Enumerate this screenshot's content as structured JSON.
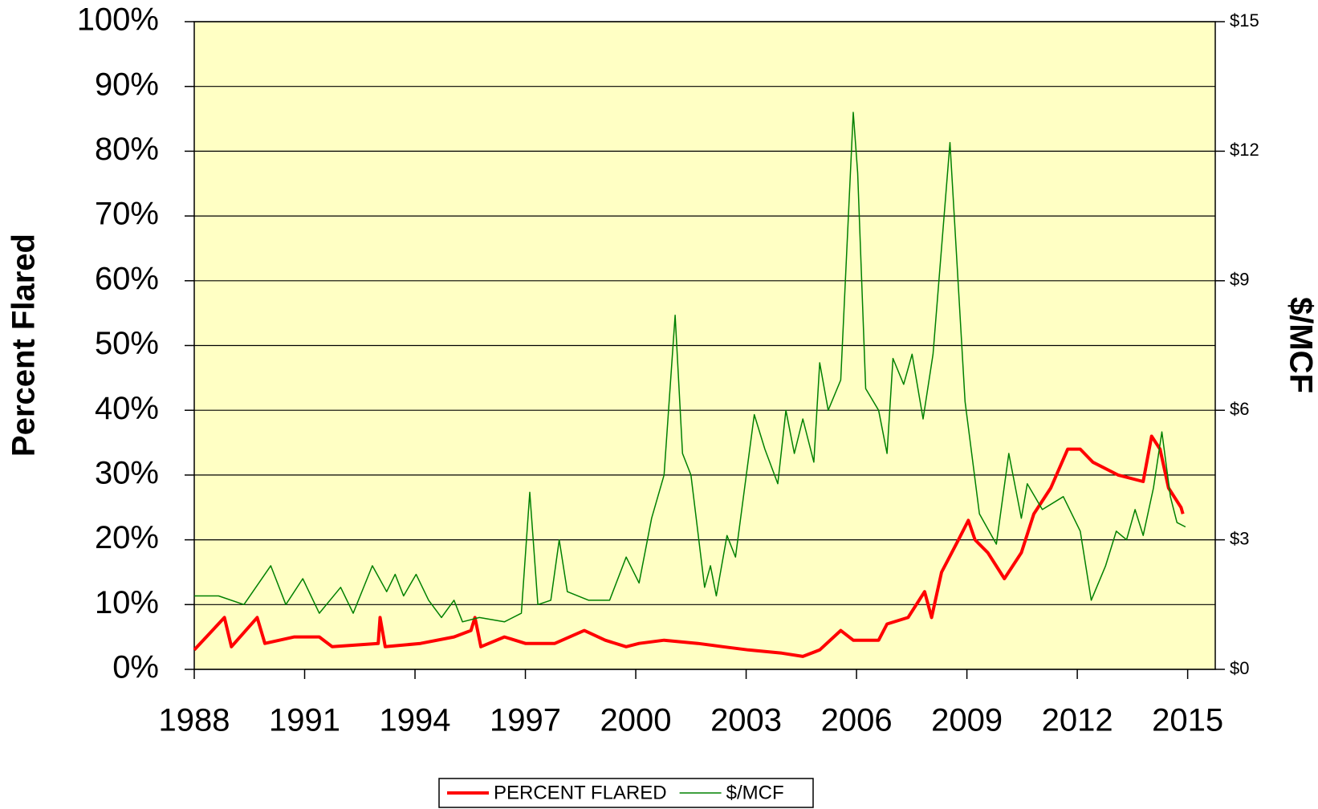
{
  "chart_data": {
    "type": "line",
    "y_label": "Percent Flared",
    "y2_label": "$/MCF",
    "xlim": [
      1988,
      2015.75
    ],
    "xticks": [
      1988,
      1991,
      1994,
      1997,
      2000,
      2003,
      2006,
      2009,
      2012,
      2015
    ],
    "ylim": [
      0,
      100
    ],
    "yticks": [
      {
        "value": 0,
        "label": "0%"
      },
      {
        "value": 10,
        "label": "10%"
      },
      {
        "value": 20,
        "label": "20%"
      },
      {
        "value": 30,
        "label": "30%"
      },
      {
        "value": 40,
        "label": "40%"
      },
      {
        "value": 50,
        "label": "50%"
      },
      {
        "value": 60,
        "label": "60%"
      },
      {
        "value": 70,
        "label": "70%"
      },
      {
        "value": 80,
        "label": "80%"
      },
      {
        "value": 90,
        "label": "90%"
      },
      {
        "value": 100,
        "label": "100%"
      }
    ],
    "y2lim": [
      0,
      15
    ],
    "y2ticks": [
      {
        "value": 0,
        "label": "$0"
      },
      {
        "value": 3,
        "label": "$3"
      },
      {
        "value": 6,
        "label": "$6"
      },
      {
        "value": 9,
        "label": "$9"
      },
      {
        "value": 12,
        "label": "$12"
      },
      {
        "value": 15,
        "label": "$15"
      }
    ],
    "grid": true,
    "legend": "bottom",
    "background": "#ffffc4",
    "series": [
      {
        "name": "PERCENT FLARED",
        "color": "#ff0000",
        "width": 4,
        "x": [
          1988,
          1988.82,
          1989.01,
          1989.71,
          1989.92,
          1990.72,
          1991.4,
          1991.75,
          1993.0,
          1993.05,
          1993.19,
          1994.15,
          1995.06,
          1995.52,
          1995.63,
          1995.79,
          1996.43,
          1997.0,
          1997.8,
          1998.6,
          1999.17,
          1999.74,
          2000.09,
          2000.77,
          2001.69,
          2002.37,
          2003.06,
          2003.97,
          2004.54,
          2005.0,
          2005.57,
          2005.91,
          2006.6,
          2006.83,
          2007.4,
          2007.85,
          2008.04,
          2008.31,
          2008.77,
          2009.04,
          2009.22,
          2009.57,
          2010.02,
          2010.48,
          2010.82,
          2011.28,
          2011.74,
          2012.08,
          2012.42,
          2013.11,
          2013.79,
          2014.02,
          2014.25,
          2014.48,
          2014.82,
          2014.87
        ],
        "values": [
          3,
          8,
          3.5,
          8,
          4,
          5,
          5,
          3.5,
          4,
          8,
          3.5,
          4,
          5,
          6,
          8,
          3.5,
          5,
          4,
          4,
          6,
          4.5,
          3.5,
          4,
          4.5,
          4,
          3.5,
          3,
          2.5,
          2,
          3,
          6,
          4.5,
          4.5,
          7,
          8,
          12,
          8,
          15,
          20,
          23,
          20,
          18,
          14,
          18,
          24,
          28,
          34,
          34,
          32,
          30,
          29,
          36,
          34,
          28,
          25,
          24
        ]
      },
      {
        "name": "$/MCF",
        "color": "#008000",
        "width": 1.5,
        "axis": "y2",
        "x": [
          1988,
          1988.66,
          1989.35,
          1990.08,
          1990.49,
          1990.95,
          1991.4,
          1991.98,
          1992.32,
          1992.84,
          1993.23,
          1993.46,
          1993.69,
          1994.03,
          1994.37,
          1994.72,
          1995.06,
          1995.29,
          1995.75,
          1996.43,
          1996.89,
          1997.12,
          1997.34,
          1997.69,
          1997.92,
          1998.14,
          1998.72,
          1999.29,
          1999.74,
          2000.09,
          2000.43,
          2000.77,
          2001.07,
          2001.27,
          2001.5,
          2001.87,
          2002.03,
          2002.19,
          2002.48,
          2002.71,
          2003.22,
          2003.51,
          2003.86,
          2004.08,
          2004.31,
          2004.54,
          2004.84,
          2005.0,
          2005.23,
          2005.57,
          2005.91,
          2006.03,
          2006.25,
          2006.6,
          2006.83,
          2006.99,
          2007.28,
          2007.51,
          2007.81,
          2008.08,
          2008.54,
          2008.95,
          2009.34,
          2009.8,
          2010.14,
          2010.48,
          2010.64,
          2011.05,
          2011.62,
          2012.08,
          2012.38,
          2012.77,
          2013.06,
          2013.34,
          2013.57,
          2013.79,
          2014.07,
          2014.3,
          2014.53,
          2014.71,
          2014.94
        ],
        "values": [
          1.7,
          1.7,
          1.5,
          2.4,
          1.5,
          2.1,
          1.3,
          1.9,
          1.3,
          2.4,
          1.8,
          2.2,
          1.7,
          2.2,
          1.6,
          1.2,
          1.6,
          1.1,
          1.2,
          1.1,
          1.3,
          4.1,
          1.5,
          1.6,
          3.0,
          1.8,
          1.6,
          1.6,
          2.6,
          2.0,
          3.5,
          4.5,
          8.2,
          5.0,
          4.5,
          1.9,
          2.4,
          1.7,
          3.1,
          2.6,
          5.9,
          5.1,
          4.3,
          6.0,
          5.0,
          5.8,
          4.8,
          7.1,
          6.0,
          6.7,
          12.9,
          11.5,
          6.5,
          6.0,
          5.0,
          7.2,
          6.6,
          7.3,
          5.8,
          7.3,
          12.2,
          6.2,
          3.6,
          2.9,
          5.0,
          3.5,
          4.3,
          3.7,
          4.0,
          3.2,
          1.6,
          2.4,
          3.2,
          3.0,
          3.7,
          3.1,
          4.2,
          5.5,
          4.0,
          3.4,
          3.3
        ]
      }
    ]
  }
}
